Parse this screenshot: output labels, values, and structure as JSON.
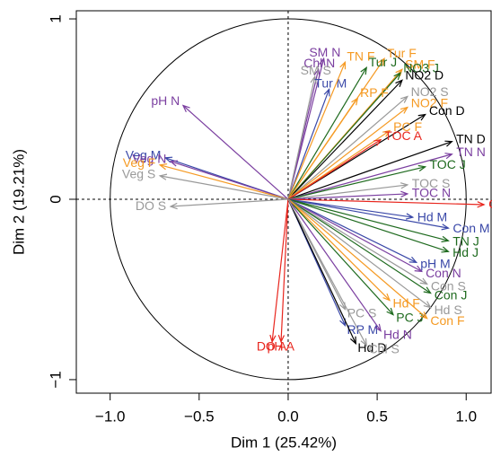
{
  "chart_data": {
    "type": "arrows",
    "x_label": "Dim 1 (25.42%)",
    "y_label": "Dim 2 (19.21%)",
    "xlim": [
      -1.19,
      1.14
    ],
    "ylim": [
      -1.075,
      1.045
    ],
    "xticks": [
      {
        "value": -1,
        "label": "−1.0"
      },
      {
        "value": -0.5,
        "label": "−0.5"
      },
      {
        "value": 0,
        "label": "0.0"
      },
      0.5,
      {
        "value": 1,
        "label": "1.0"
      }
    ],
    "yticks": [
      {
        "value": -1,
        "label": "−1"
      },
      0,
      1
    ],
    "points": [
      {
        "label": "SM N",
        "x": 0.2,
        "y": 0.78,
        "color": "#7b3fa0"
      },
      {
        "label": "Chl N",
        "x": 0.17,
        "y": 0.72,
        "color": "#7b3fa0"
      },
      {
        "label": "SM S",
        "x": 0.15,
        "y": 0.68,
        "color": "#999999"
      },
      {
        "label": "Tur M",
        "x": 0.23,
        "y": 0.61,
        "color": "#3a48a8"
      },
      {
        "label": "TN F",
        "x": 0.32,
        "y": 0.76,
        "color": "#f59a23"
      },
      {
        "label": "Tur F",
        "x": 0.54,
        "y": 0.78,
        "color": "#f59a23"
      },
      {
        "label": "Tur J",
        "x": 0.44,
        "y": 0.73,
        "color": "#1e6a1e"
      },
      {
        "label": "SM F",
        "x": 0.64,
        "y": 0.72,
        "color": "#f59a23"
      },
      {
        "label": "NO3 J",
        "x": 0.63,
        "y": 0.7,
        "color": "#1e6a1e"
      },
      {
        "label": "NO2 D",
        "x": 0.64,
        "y": 0.66,
        "color": "#000000"
      },
      {
        "label": "RP F",
        "x": 0.39,
        "y": 0.56,
        "color": "#f59a23"
      },
      {
        "label": "NO2 S",
        "x": 0.67,
        "y": 0.57,
        "color": "#999999"
      },
      {
        "label": "NO2 F",
        "x": 0.67,
        "y": 0.51,
        "color": "#f59a23"
      },
      {
        "label": "Con D",
        "x": 0.77,
        "y": 0.47,
        "color": "#000000"
      },
      {
        "label": "PC F",
        "x": 0.57,
        "y": 0.38,
        "color": "#f59a23"
      },
      {
        "label": "TN D",
        "x": 0.92,
        "y": 0.32,
        "color": "#000000"
      },
      {
        "label": "TOC A",
        "x": 0.52,
        "y": 0.33,
        "color": "#e8261e"
      },
      {
        "label": "TN N",
        "x": 0.92,
        "y": 0.25,
        "color": "#7b3fa0"
      },
      {
        "label": "TOC J",
        "x": 0.77,
        "y": 0.18,
        "color": "#1e6a1e"
      },
      {
        "label": "TOC S",
        "x": 0.67,
        "y": 0.08,
        "color": "#999999"
      },
      {
        "label": "TOC N",
        "x": 0.67,
        "y": 0.03,
        "color": "#7b3fa0"
      },
      {
        "label": "Con A",
        "x": 1.1,
        "y": -0.03,
        "color": "#e8261e"
      },
      {
        "label": "pH N",
        "x": -0.59,
        "y": 0.52,
        "color": "#7b3fa0"
      },
      {
        "label": "Veg M",
        "x": -0.69,
        "y": 0.23,
        "color": "#3a48a8"
      },
      {
        "label": "Veg N",
        "x": -0.66,
        "y": 0.21,
        "color": "#7b3fa0"
      },
      {
        "label": "Veg F",
        "x": -0.72,
        "y": 0.19,
        "color": "#f59a23"
      },
      {
        "label": "Veg S",
        "x": -0.72,
        "y": 0.13,
        "color": "#999999"
      },
      {
        "label": "DO S",
        "x": -0.66,
        "y": -0.04,
        "color": "#999999"
      },
      {
        "label": "Hd M",
        "x": 0.7,
        "y": -0.1,
        "color": "#3a48a8"
      },
      {
        "label": "Con M",
        "x": 0.9,
        "y": -0.16,
        "color": "#3a48a8"
      },
      {
        "label": "TN J",
        "x": 0.9,
        "y": -0.23,
        "color": "#1e6a1e"
      },
      {
        "label": "Hd J",
        "x": 0.9,
        "y": -0.29,
        "color": "#1e6a1e"
      },
      {
        "label": "pH M",
        "x": 0.72,
        "y": -0.35,
        "color": "#3a48a8"
      },
      {
        "label": "Con N",
        "x": 0.75,
        "y": -0.4,
        "color": "#7b3fa0"
      },
      {
        "label": "Con S",
        "x": 0.78,
        "y": -0.47,
        "color": "#999999"
      },
      {
        "label": "Con J",
        "x": 0.8,
        "y": -0.52,
        "color": "#1e6a1e"
      },
      {
        "label": "Hd F",
        "x": 0.57,
        "y": -0.56,
        "color": "#f59a23"
      },
      {
        "label": "Hd S",
        "x": 0.8,
        "y": -0.6,
        "color": "#999999"
      },
      {
        "label": "PC S",
        "x": 0.32,
        "y": -0.61,
        "color": "#999999"
      },
      {
        "label": "PC J",
        "x": 0.59,
        "y": -0.64,
        "color": "#1e6a1e"
      },
      {
        "label": "Con F",
        "x": 0.78,
        "y": -0.66,
        "color": "#f59a23"
      },
      {
        "label": "RP M",
        "x": 0.32,
        "y": -0.7,
        "color": "#3a48a8"
      },
      {
        "label": "Hd N",
        "x": 0.52,
        "y": -0.73,
        "color": "#7b3fa0"
      },
      {
        "label": "DO A",
        "x": -0.09,
        "y": -0.79,
        "color": "#e8261e"
      },
      {
        "label": "pH A",
        "x": -0.04,
        "y": -0.79,
        "color": "#e8261e"
      },
      {
        "label": "Hd D",
        "x": 0.38,
        "y": -0.8,
        "color": "#000000"
      },
      {
        "label": "Chl S",
        "x": 0.44,
        "y": -0.81,
        "color": "#999999"
      }
    ]
  }
}
